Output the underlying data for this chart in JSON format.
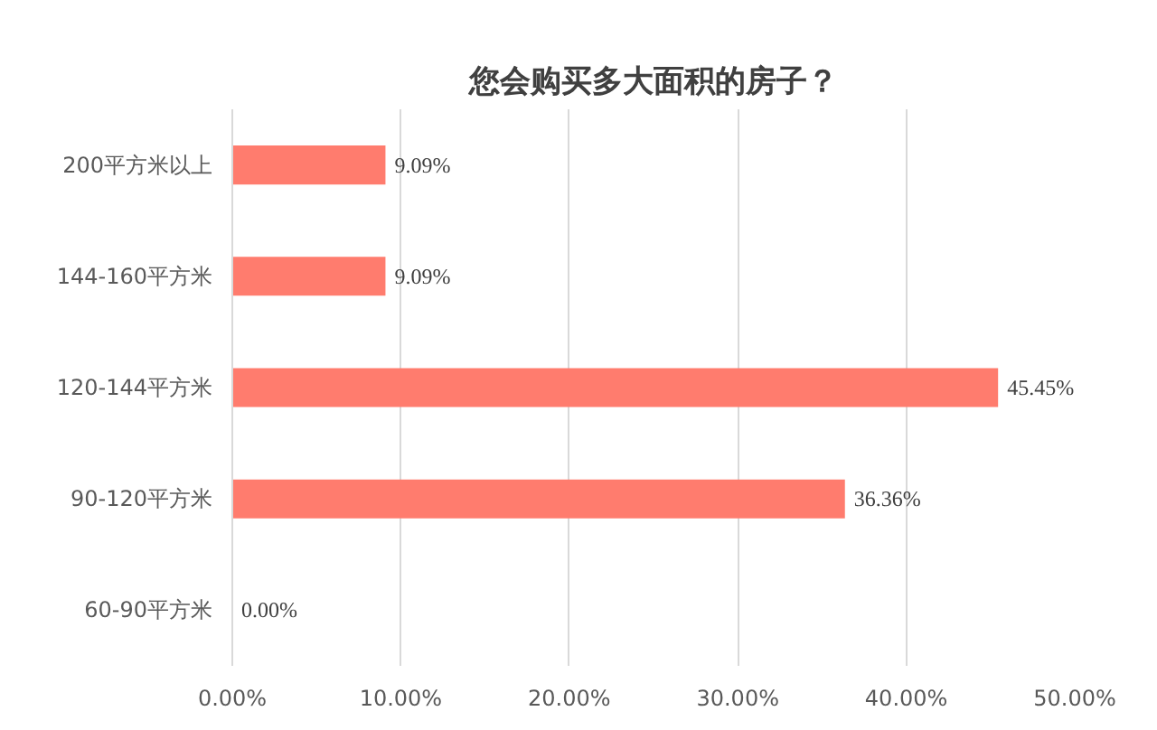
{
  "chart_data": {
    "type": "bar",
    "orientation": "horizontal",
    "title": "您会购买多大面积的房子？",
    "categories": [
      "200平方米以上",
      "144-160平方米",
      "120-144平方米",
      "90-120平方米",
      "60-90平方米"
    ],
    "values": [
      9.09,
      9.09,
      45.45,
      36.36,
      0.0
    ],
    "value_labels": [
      "9.09%",
      "9.09%",
      "45.45%",
      "36.36%",
      "0.00%"
    ],
    "color": "#ff7c6e",
    "xlim": [
      0,
      50
    ],
    "xticks": [
      {
        "value": 0,
        "label": "0.00%"
      },
      {
        "value": 10,
        "label": "10.00%"
      },
      {
        "value": 20,
        "label": "20.00%"
      },
      {
        "value": 30,
        "label": "30.00%"
      },
      {
        "value": 40,
        "label": "40.00%"
      },
      {
        "value": 50,
        "label": "50.00%"
      }
    ],
    "grid": "x"
  }
}
